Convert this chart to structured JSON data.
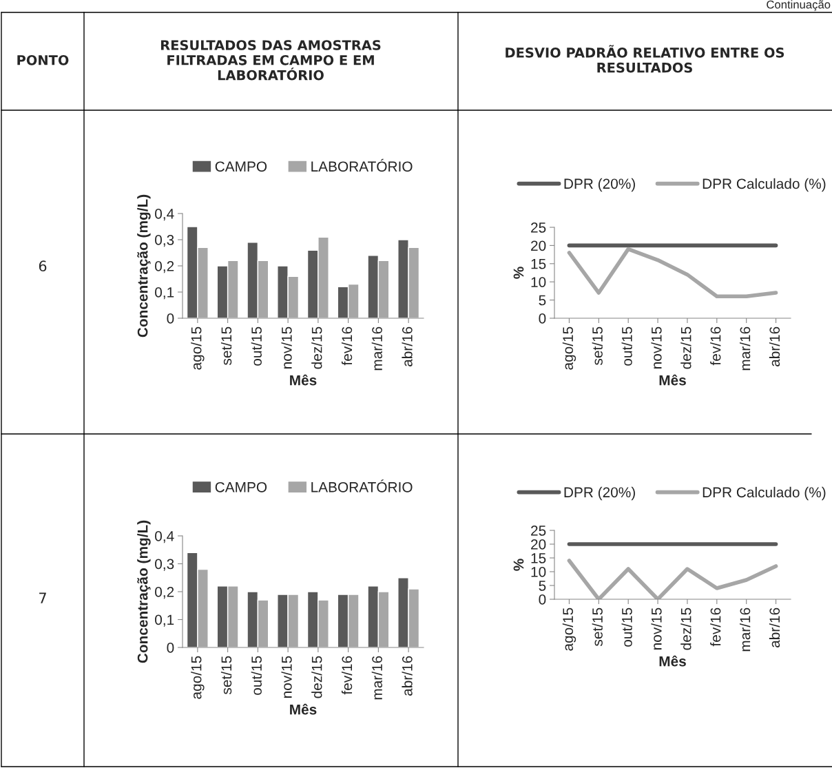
{
  "chart_data": [
    {
      "type": "bar",
      "xlabel": "Mês",
      "ylabel": "Concentração (mg/L)",
      "legend": "top",
      "categories": [
        "ago/15",
        "set/15",
        "out/15",
        "nov/15",
        "dez/15",
        "fev/16",
        "mar/16",
        "abr/16"
      ],
      "series": [
        {
          "name": "CAMPO",
          "color": "#595959",
          "values": [
            0.35,
            0.2,
            0.29,
            0.2,
            0.26,
            0.12,
            0.24,
            0.3
          ]
        },
        {
          "name": "LABORATÓRIO",
          "color": "#a6a6a6",
          "values": [
            0.27,
            0.22,
            0.22,
            0.16,
            0.31,
            0.13,
            0.22,
            0.27
          ]
        }
      ],
      "ylim": [
        0,
        0.4
      ],
      "yticks": [
        0,
        {
          "value": 0.1,
          "label": "0,1"
        },
        {
          "value": 0.2,
          "label": "0,2"
        },
        {
          "value": 0.3,
          "label": "0,3"
        },
        {
          "value": 0.4,
          "label": "0,4"
        }
      ],
      "annotations": [
        "Continuação",
        "PONTO",
        "RESULTADOS DAS AMOSTRAS\nFILTRADAS EM CAMPO E EM\nLABORATÓRIO",
        "6"
      ]
    },
    {
      "type": "line",
      "xlabel": "Mês",
      "ylabel": "%",
      "legend": "top",
      "categories": [
        "ago/15",
        "set/15",
        "out/15",
        "nov/15",
        "dez/15",
        "fev/16",
        "mar/16",
        "abr/16"
      ],
      "series": [
        {
          "name": "DPR (20%)",
          "color": "#595959",
          "values": [
            20,
            20,
            20,
            20,
            20,
            20,
            20,
            20
          ]
        },
        {
          "name": "DPR Calculado (%)",
          "color": "#a6a6a6",
          "values": [
            18,
            7,
            19,
            16,
            12,
            6,
            6,
            7
          ]
        }
      ],
      "ylim": [
        0,
        25
      ],
      "yticks": [
        0,
        5,
        10,
        15,
        20,
        25
      ],
      "annotations": [
        "DESVIO PADRÃO RELATIVO ENTRE OS\nRESULTADOS"
      ]
    },
    {
      "type": "bar",
      "xlabel": "Mês",
      "ylabel": "Concentração (mg/L)",
      "legend": "top",
      "categories": [
        "ago/15",
        "set/15",
        "out/15",
        "nov/15",
        "dez/15",
        "fev/16",
        "mar/16",
        "abr/16"
      ],
      "series": [
        {
          "name": "CAMPO",
          "color": "#595959",
          "values": [
            0.34,
            0.22,
            0.2,
            0.19,
            0.2,
            0.19,
            0.22,
            0.25
          ]
        },
        {
          "name": "LABORATÓRIO",
          "color": "#a6a6a6",
          "values": [
            0.28,
            0.22,
            0.17,
            0.19,
            0.17,
            0.19,
            0.2,
            0.21
          ]
        }
      ],
      "ylim": [
        0,
        0.4
      ],
      "yticks": [
        0,
        {
          "value": 0.1,
          "label": "0,1"
        },
        {
          "value": 0.2,
          "label": "0,2"
        },
        {
          "value": 0.3,
          "label": "0,3"
        },
        {
          "value": 0.4,
          "label": "0,4"
        }
      ],
      "annotations": [
        "7"
      ]
    },
    {
      "type": "line",
      "xlabel": "Mês",
      "ylabel": "%",
      "legend": "top",
      "categories": [
        "ago/15",
        "set/15",
        "out/15",
        "nov/15",
        "dez/15",
        "fev/16",
        "mar/16",
        "abr/16"
      ],
      "series": [
        {
          "name": "DPR (20%)",
          "color": "#595959",
          "values": [
            20,
            20,
            20,
            20,
            20,
            20,
            20,
            20
          ]
        },
        {
          "name": "DPR Calculado (%)",
          "color": "#a6a6a6",
          "values": [
            14,
            0,
            11,
            0,
            11,
            4,
            7,
            12
          ]
        }
      ],
      "ylim": [
        0,
        25
      ],
      "yticks": [
        0,
        5,
        10,
        15,
        20,
        25
      ]
    }
  ]
}
